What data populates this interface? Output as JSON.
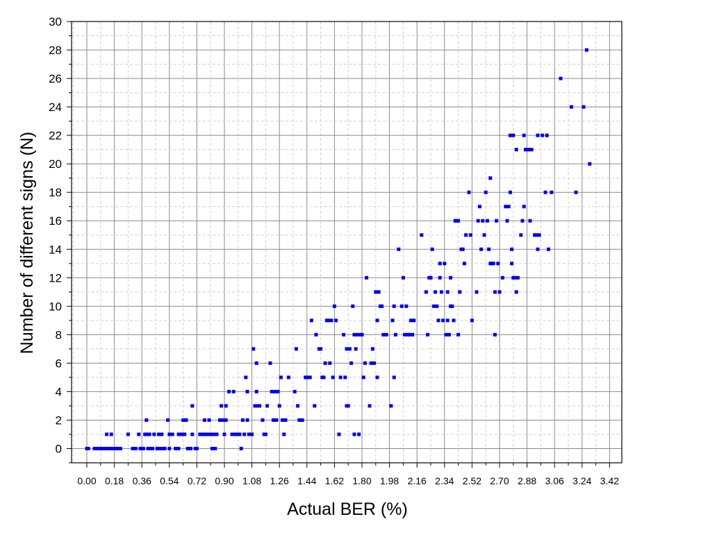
{
  "chart_data": {
    "type": "scatter",
    "xlabel": "Actual BER (%)",
    "ylabel": "Number of different signs (N)",
    "xlim": [
      -0.1,
      3.5
    ],
    "ylim": [
      -1,
      30
    ],
    "x_ticks": [
      "0.00",
      "0.18",
      "0.36",
      "0.54",
      "0.72",
      "0.90",
      "1.08",
      "1.26",
      "1.44",
      "1.62",
      "1.80",
      "1.98",
      "2.16",
      "2.34",
      "2.52",
      "2.70",
      "2.88",
      "3.06",
      "3.24",
      "3.42"
    ],
    "y_ticks": [
      "0",
      "2",
      "4",
      "6",
      "8",
      "10",
      "12",
      "14",
      "16",
      "18",
      "20",
      "22",
      "24",
      "26",
      "28",
      "30"
    ],
    "grid": true,
    "marker_color": "#0000ee",
    "series": [
      {
        "points": [
          [
            0.0,
            0
          ],
          [
            0.01,
            0
          ],
          [
            0.05,
            0
          ],
          [
            0.07,
            0
          ],
          [
            0.09,
            0
          ],
          [
            0.1,
            0
          ],
          [
            0.12,
            0
          ],
          [
            0.13,
            0
          ],
          [
            0.15,
            0
          ],
          [
            0.16,
            0
          ],
          [
            0.18,
            0
          ],
          [
            0.2,
            0
          ],
          [
            0.22,
            0
          ],
          [
            0.13,
            1
          ],
          [
            0.16,
            1
          ],
          [
            0.27,
            1
          ],
          [
            0.3,
            0
          ],
          [
            0.32,
            0
          ],
          [
            0.34,
            1
          ],
          [
            0.35,
            0
          ],
          [
            0.37,
            0
          ],
          [
            0.38,
            1
          ],
          [
            0.39,
            1
          ],
          [
            0.39,
            2
          ],
          [
            0.4,
            0
          ],
          [
            0.41,
            1
          ],
          [
            0.42,
            0
          ],
          [
            0.43,
            0
          ],
          [
            0.44,
            1
          ],
          [
            0.46,
            0
          ],
          [
            0.47,
            1
          ],
          [
            0.48,
            0
          ],
          [
            0.49,
            1
          ],
          [
            0.5,
            0
          ],
          [
            0.51,
            0
          ],
          [
            0.53,
            2
          ],
          [
            0.54,
            0
          ],
          [
            0.54,
            1
          ],
          [
            0.56,
            1
          ],
          [
            0.58,
            0
          ],
          [
            0.6,
            0
          ],
          [
            0.6,
            1
          ],
          [
            0.62,
            1
          ],
          [
            0.63,
            2
          ],
          [
            0.64,
            1
          ],
          [
            0.65,
            2
          ],
          [
            0.66,
            0
          ],
          [
            0.68,
            0
          ],
          [
            0.69,
            1
          ],
          [
            0.69,
            3
          ],
          [
            0.71,
            0
          ],
          [
            0.72,
            0
          ],
          [
            0.74,
            1
          ],
          [
            0.76,
            1
          ],
          [
            0.77,
            2
          ],
          [
            0.78,
            1
          ],
          [
            0.79,
            1
          ],
          [
            0.8,
            2
          ],
          [
            0.81,
            1
          ],
          [
            0.82,
            0
          ],
          [
            0.83,
            1
          ],
          [
            0.84,
            0
          ],
          [
            0.85,
            1
          ],
          [
            0.87,
            2
          ],
          [
            0.88,
            3
          ],
          [
            0.89,
            2
          ],
          [
            0.9,
            1
          ],
          [
            0.91,
            3
          ],
          [
            0.91,
            2
          ],
          [
            0.93,
            4
          ],
          [
            0.95,
            1
          ],
          [
            0.96,
            4
          ],
          [
            0.97,
            1
          ],
          [
            0.99,
            1
          ],
          [
            1.0,
            1
          ],
          [
            1.01,
            0
          ],
          [
            1.02,
            2
          ],
          [
            1.03,
            1
          ],
          [
            1.04,
            5
          ],
          [
            1.05,
            4
          ],
          [
            1.05,
            2
          ],
          [
            1.06,
            1
          ],
          [
            1.07,
            1
          ],
          [
            1.08,
            1
          ],
          [
            1.09,
            7
          ],
          [
            1.1,
            3
          ],
          [
            1.11,
            6
          ],
          [
            1.11,
            4
          ],
          [
            1.12,
            3
          ],
          [
            1.13,
            3
          ],
          [
            1.15,
            2
          ],
          [
            1.16,
            1
          ],
          [
            1.17,
            1
          ],
          [
            1.18,
            3
          ],
          [
            1.2,
            6
          ],
          [
            1.21,
            4
          ],
          [
            1.22,
            2
          ],
          [
            1.23,
            4
          ],
          [
            1.24,
            2
          ],
          [
            1.25,
            4
          ],
          [
            1.26,
            3
          ],
          [
            1.27,
            5
          ],
          [
            1.28,
            2
          ],
          [
            1.29,
            1
          ],
          [
            1.3,
            2
          ],
          [
            1.32,
            5
          ],
          [
            1.36,
            4
          ],
          [
            1.37,
            7
          ],
          [
            1.38,
            3
          ],
          [
            1.39,
            2
          ],
          [
            1.41,
            2
          ],
          [
            1.43,
            5
          ],
          [
            1.44,
            5
          ],
          [
            1.46,
            5
          ],
          [
            1.47,
            9
          ],
          [
            1.49,
            3
          ],
          [
            1.5,
            8
          ],
          [
            1.52,
            7
          ],
          [
            1.53,
            7
          ],
          [
            1.54,
            5
          ],
          [
            1.55,
            5
          ],
          [
            1.56,
            6
          ],
          [
            1.57,
            9
          ],
          [
            1.58,
            9
          ],
          [
            1.59,
            6
          ],
          [
            1.6,
            9
          ],
          [
            1.61,
            5
          ],
          [
            1.62,
            10
          ],
          [
            1.63,
            9
          ],
          [
            1.65,
            1
          ],
          [
            1.66,
            5
          ],
          [
            1.68,
            8
          ],
          [
            1.69,
            5
          ],
          [
            1.7,
            7
          ],
          [
            1.7,
            3
          ],
          [
            1.71,
            3
          ],
          [
            1.72,
            7
          ],
          [
            1.73,
            6
          ],
          [
            1.74,
            10
          ],
          [
            1.75,
            8
          ],
          [
            1.75,
            1
          ],
          [
            1.76,
            7
          ],
          [
            1.77,
            8
          ],
          [
            1.78,
            1
          ],
          [
            1.79,
            8
          ],
          [
            1.8,
            8
          ],
          [
            1.81,
            5
          ],
          [
            1.82,
            6
          ],
          [
            1.83,
            12
          ],
          [
            1.85,
            3
          ],
          [
            1.86,
            6
          ],
          [
            1.87,
            7
          ],
          [
            1.88,
            6
          ],
          [
            1.89,
            11
          ],
          [
            1.9,
            9
          ],
          [
            1.9,
            5
          ],
          [
            1.91,
            11
          ],
          [
            1.92,
            10
          ],
          [
            1.93,
            10
          ],
          [
            1.94,
            8
          ],
          [
            1.96,
            8
          ],
          [
            1.99,
            3
          ],
          [
            2.0,
            9
          ],
          [
            2.01,
            5
          ],
          [
            2.01,
            10
          ],
          [
            2.02,
            8
          ],
          [
            2.04,
            14
          ],
          [
            2.06,
            10
          ],
          [
            2.07,
            12
          ],
          [
            2.08,
            8
          ],
          [
            2.09,
            10
          ],
          [
            2.1,
            8
          ],
          [
            2.11,
            8
          ],
          [
            2.12,
            9
          ],
          [
            2.13,
            8
          ],
          [
            2.14,
            9
          ],
          [
            2.19,
            15
          ],
          [
            2.22,
            11
          ],
          [
            2.23,
            8
          ],
          [
            2.24,
            12
          ],
          [
            2.25,
            12
          ],
          [
            2.26,
            14
          ],
          [
            2.27,
            10
          ],
          [
            2.28,
            11
          ],
          [
            2.29,
            10
          ],
          [
            2.3,
            9
          ],
          [
            2.31,
            12
          ],
          [
            2.31,
            13
          ],
          [
            2.32,
            11
          ],
          [
            2.33,
            9
          ],
          [
            2.34,
            13
          ],
          [
            2.35,
            8
          ],
          [
            2.36,
            11
          ],
          [
            2.36,
            9
          ],
          [
            2.37,
            8
          ],
          [
            2.38,
            12
          ],
          [
            2.38,
            10
          ],
          [
            2.39,
            10
          ],
          [
            2.4,
            9
          ],
          [
            2.41,
            16
          ],
          [
            2.42,
            16
          ],
          [
            2.43,
            8
          ],
          [
            2.43,
            16
          ],
          [
            2.44,
            11
          ],
          [
            2.45,
            14
          ],
          [
            2.46,
            14
          ],
          [
            2.47,
            13
          ],
          [
            2.48,
            15
          ],
          [
            2.5,
            18
          ],
          [
            2.51,
            15
          ],
          [
            2.52,
            9
          ],
          [
            2.55,
            11
          ],
          [
            2.56,
            16
          ],
          [
            2.57,
            17
          ],
          [
            2.58,
            14
          ],
          [
            2.59,
            16
          ],
          [
            2.6,
            15
          ],
          [
            2.61,
            18
          ],
          [
            2.62,
            16
          ],
          [
            2.63,
            14
          ],
          [
            2.64,
            19
          ],
          [
            2.64,
            13
          ],
          [
            2.65,
            13
          ],
          [
            2.66,
            13
          ],
          [
            2.67,
            11
          ],
          [
            2.67,
            8
          ],
          [
            2.68,
            16
          ],
          [
            2.69,
            13
          ],
          [
            2.7,
            11
          ],
          [
            2.72,
            12
          ],
          [
            2.74,
            17
          ],
          [
            2.75,
            16
          ],
          [
            2.76,
            17
          ],
          [
            2.77,
            22
          ],
          [
            2.77,
            18
          ],
          [
            2.78,
            14
          ],
          [
            2.78,
            13
          ],
          [
            2.79,
            22
          ],
          [
            2.79,
            12
          ],
          [
            2.8,
            12
          ],
          [
            2.81,
            21
          ],
          [
            2.81,
            11
          ],
          [
            2.82,
            12
          ],
          [
            2.84,
            15
          ],
          [
            2.85,
            16
          ],
          [
            2.86,
            22
          ],
          [
            2.86,
            17
          ],
          [
            2.87,
            21
          ],
          [
            2.88,
            21
          ],
          [
            2.89,
            21
          ],
          [
            2.9,
            16
          ],
          [
            2.91,
            21
          ],
          [
            2.93,
            15
          ],
          [
            2.94,
            15
          ],
          [
            2.95,
            22
          ],
          [
            2.95,
            14
          ],
          [
            2.96,
            15
          ],
          [
            2.98,
            22
          ],
          [
            3.0,
            18
          ],
          [
            3.01,
            22
          ],
          [
            3.02,
            14
          ],
          [
            3.04,
            18
          ],
          [
            3.1,
            26
          ],
          [
            3.17,
            24
          ],
          [
            3.2,
            18
          ],
          [
            3.25,
            24
          ],
          [
            3.27,
            28
          ],
          [
            3.29,
            20
          ]
        ]
      }
    ]
  }
}
